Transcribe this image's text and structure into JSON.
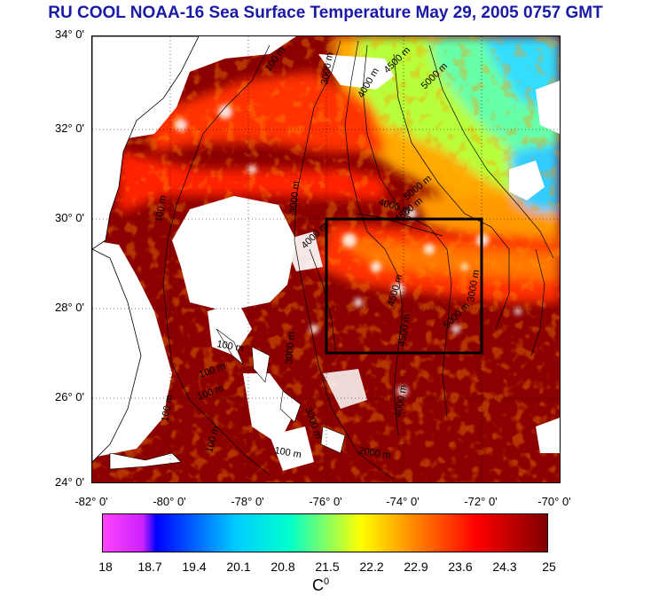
{
  "title": "RU COOL  NOAA-16 Sea Surface Temperature May 29, 2005 0757 GMT",
  "map": {
    "lat_labels": [
      "34° 0'",
      "32° 0'",
      "30° 0'",
      "28° 0'",
      "26° 0'",
      "24° 0'"
    ],
    "lon_labels": [
      "-82° 0'",
      "-80° 0'",
      "-78° 0'",
      "-76° 0'",
      "-74° 0'",
      "-72° 0'",
      "-70° 0'"
    ],
    "lat_range": [
      24,
      34
    ],
    "lon_range": [
      -82,
      -70
    ],
    "contour_labels": [
      "100 m",
      "100 m",
      "100 m",
      "100 m",
      "100 m",
      "100 m",
      "100 m",
      "100 m",
      "3000 m",
      "4000 m",
      "4500 m",
      "5000 m",
      "4000 m",
      "5000 m",
      "4500 m",
      "3000 m",
      "4000 m",
      "4500 m",
      "5000 m",
      "4500 m",
      "4000 m",
      "3000 m",
      "3000 m",
      "2000 m",
      "3000 m"
    ],
    "study_box": {
      "lon": [
        -76,
        -72
      ],
      "lat": [
        27,
        30
      ]
    }
  },
  "colorbar": {
    "tick_labels": [
      "18",
      "18.7",
      "19.4",
      "20.1",
      "20.8",
      "21.5",
      "22.2",
      "22.9",
      "23.6",
      "24.3",
      "25"
    ],
    "unit_base": "C",
    "unit_sup": "0",
    "colors": [
      "#ff44ff",
      "#0000ff",
      "#00ccff",
      "#00ffcc",
      "#ffff00",
      "#ff8800",
      "#ff0000",
      "#800000"
    ]
  },
  "palette": {
    "sst_warm": "#8b0000",
    "sst_hot": "#ff2200",
    "sst_mid": "#ff7a00",
    "sst_cool": "#ffe000",
    "sst_cold": "#66ff66",
    "cloud": "#ffffff",
    "title_color": "#1a1aa6"
  }
}
